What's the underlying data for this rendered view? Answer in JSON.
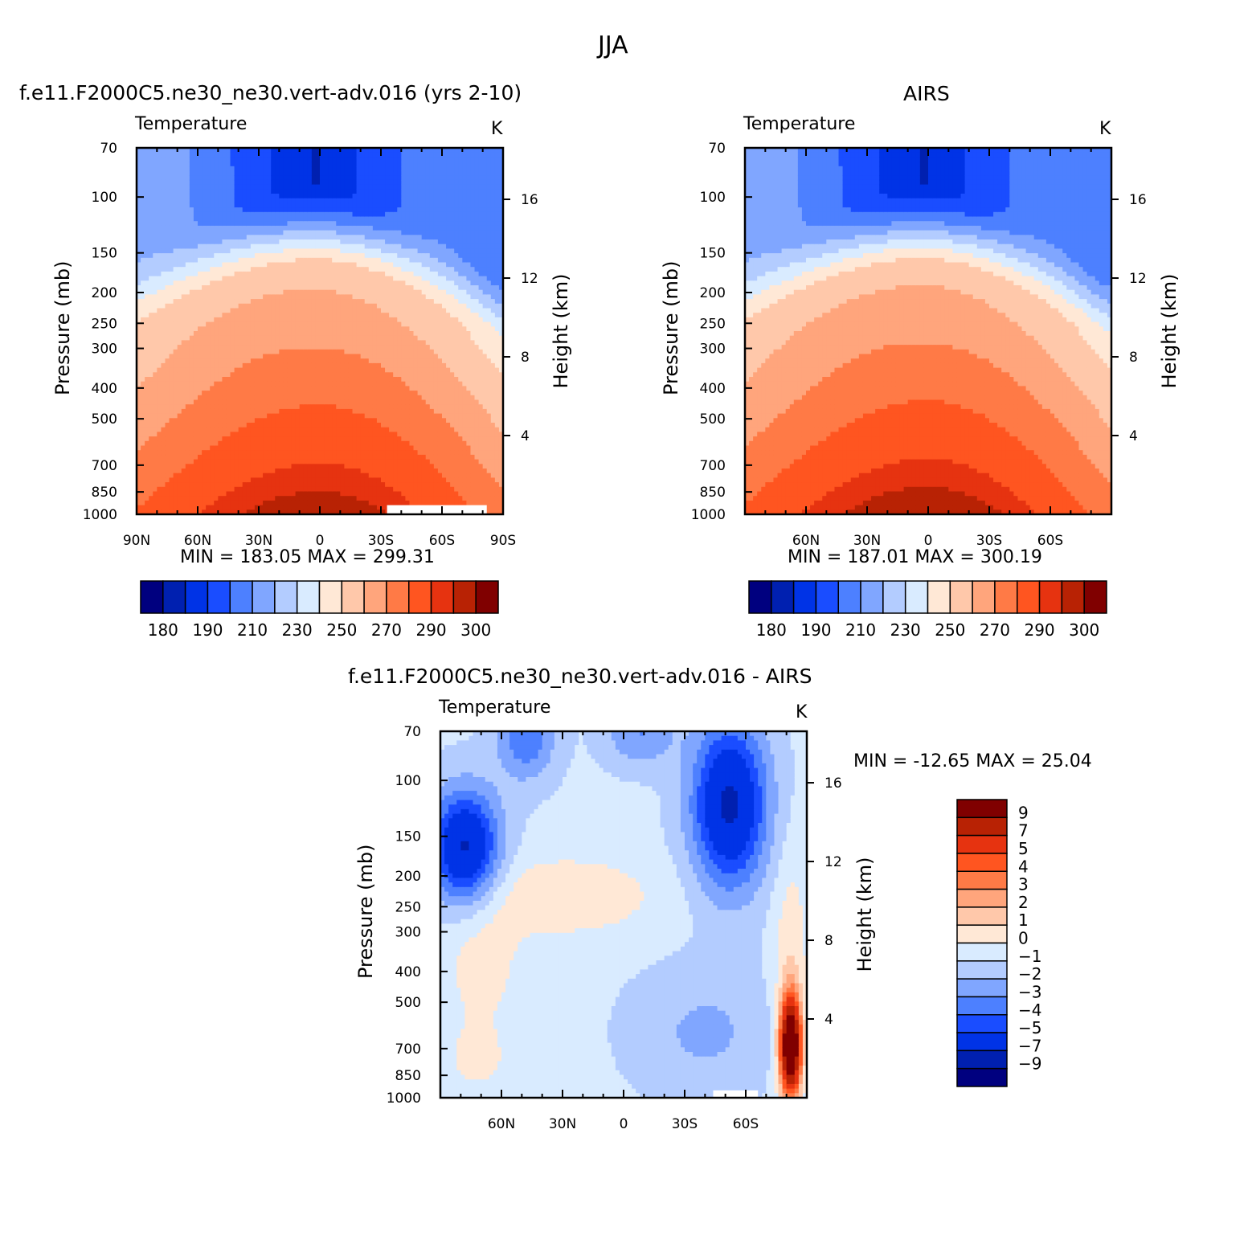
{
  "figure": {
    "title": "JJA"
  },
  "panels": {
    "model": {
      "title": "f.e11.F2000C5.ne30_ne30.vert-adv.016 (yrs 2-10)",
      "subtitle_left": "Temperature",
      "units": "K",
      "minmax": "MIN = 183.05   MAX = 299.31",
      "ylabel": "Pressure (mb)",
      "ylabel_right": "Height (km)"
    },
    "obs": {
      "title": "AIRS",
      "subtitle_left": "Temperature",
      "units": "K",
      "minmax": "MIN = 187.01   MAX = 300.19",
      "ylabel": "Pressure (mb)",
      "ylabel_right": "Height (km)"
    },
    "diff": {
      "title": "f.e11.F2000C5.ne30_ne30.vert-adv.016 - AIRS",
      "subtitle_left": "Temperature",
      "units": "K",
      "minmax": "MIN = -12.65   MAX =   25.04",
      "ylabel": "Pressure (mb)",
      "ylabel_right": "Height (km)"
    }
  },
  "chart_data": [
    {
      "type": "heatmap",
      "name": "model",
      "title": "f.e11.F2000C5.ne30_ne30.vert-adv.016 (yrs 2-10)",
      "variable": "Temperature",
      "units": "K",
      "x_ticks": [
        {
          "v": 90,
          "label": "90N"
        },
        {
          "v": 60,
          "label": "60N"
        },
        {
          "v": 30,
          "label": "30N"
        },
        {
          "v": 0,
          "label": "0"
        },
        {
          "v": -30,
          "label": "30S"
        },
        {
          "v": -60,
          "label": "60S"
        },
        {
          "v": -90,
          "label": "90S"
        }
      ],
      "xlim": [
        90,
        -90
      ],
      "y_ticks": [
        70,
        100,
        150,
        200,
        250,
        300,
        400,
        500,
        700,
        850,
        1000
      ],
      "ylim": [
        1000,
        70
      ],
      "height_ticks": [
        4,
        8,
        12,
        16
      ],
      "min": 183.05,
      "max": 299.31,
      "levels": [
        180,
        185,
        190,
        200,
        210,
        220,
        230,
        240,
        250,
        260,
        270,
        280,
        290,
        295,
        300
      ],
      "colorbar_labels": [
        180,
        190,
        210,
        230,
        250,
        270,
        290,
        300
      ]
    },
    {
      "type": "heatmap",
      "name": "obs",
      "title": "AIRS",
      "variable": "Temperature",
      "units": "K",
      "x_ticks": [
        {
          "v": 60,
          "label": "60N"
        },
        {
          "v": 30,
          "label": "30N"
        },
        {
          "v": 0,
          "label": "0"
        },
        {
          "v": -30,
          "label": "30S"
        },
        {
          "v": -60,
          "label": "60S"
        }
      ],
      "xlim": [
        90,
        -90
      ],
      "y_ticks": [
        70,
        100,
        150,
        200,
        250,
        300,
        400,
        500,
        700,
        850,
        1000
      ],
      "ylim": [
        1000,
        70
      ],
      "height_ticks": [
        4,
        8,
        12,
        16
      ],
      "min": 187.01,
      "max": 300.19,
      "levels": [
        180,
        185,
        190,
        200,
        210,
        220,
        230,
        240,
        250,
        260,
        270,
        280,
        290,
        295,
        300
      ],
      "colorbar_labels": [
        180,
        190,
        210,
        230,
        250,
        270,
        290,
        300
      ]
    },
    {
      "type": "heatmap",
      "name": "diff",
      "title": "f.e11.F2000C5.ne30_ne30.vert-adv.016 - AIRS",
      "variable": "Temperature",
      "units": "K",
      "x_ticks": [
        {
          "v": 60,
          "label": "60N"
        },
        {
          "v": 30,
          "label": "30N"
        },
        {
          "v": 0,
          "label": "0"
        },
        {
          "v": -30,
          "label": "30S"
        },
        {
          "v": -60,
          "label": "60S"
        }
      ],
      "xlim": [
        90,
        -90
      ],
      "y_ticks": [
        70,
        100,
        150,
        200,
        250,
        300,
        400,
        500,
        700,
        850,
        1000
      ],
      "ylim": [
        1000,
        70
      ],
      "height_ticks": [
        4,
        8,
        12,
        16
      ],
      "min": -12.65,
      "max": 25.04,
      "levels": [
        -9,
        -7,
        -5,
        -4,
        -3,
        -2,
        -1,
        0,
        1,
        2,
        3,
        4,
        5,
        7,
        9
      ],
      "colorbar_labels": [
        "9",
        "7",
        "5",
        "4",
        "3",
        "2",
        "1",
        "0",
        "−1",
        "−2",
        "−3",
        "−4",
        "−5",
        "−7",
        "−9"
      ]
    }
  ],
  "palette": [
    "#00007f",
    "#0020b0",
    "#0033e6",
    "#1a4dff",
    "#4d80ff",
    "#80a6ff",
    "#b3ccff",
    "#d9ebff",
    "#ffe8d6",
    "#ffc8aa",
    "#ffa57c",
    "#ff7a46",
    "#ff5520",
    "#e63310",
    "#b82204",
    "#800000"
  ]
}
